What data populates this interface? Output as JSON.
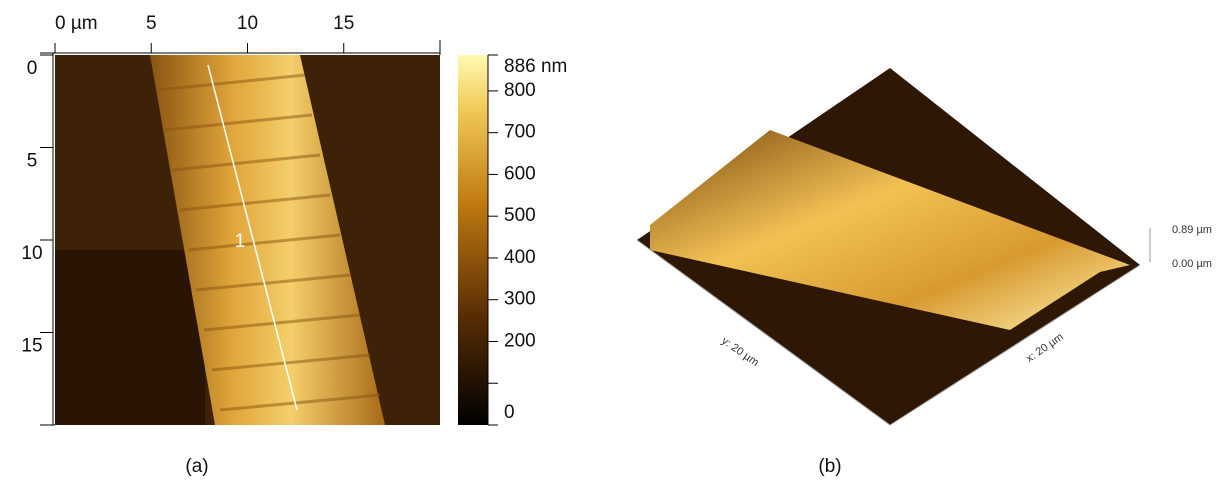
{
  "panel_a": {
    "caption": "(a)",
    "x_axis": {
      "lim": [
        0,
        20
      ],
      "ticks": [
        {
          "value": 0,
          "label": "0 µm"
        },
        5,
        10,
        15
      ]
    },
    "y_axis": {
      "lim": [
        0,
        20
      ],
      "ticks": [
        0,
        5,
        10,
        15
      ]
    },
    "profile_label": "1",
    "colorbar": {
      "lim": [
        0,
        886
      ],
      "ticks": [
        {
          "value": 886,
          "label": "886 nm"
        },
        800,
        700,
        600,
        500,
        400,
        300,
        200,
        0
      ],
      "minor_ticks": [
        100
      ]
    }
  },
  "panel_b": {
    "caption": "(b)",
    "z_ticks": [
      "0.89 µm",
      "0.00 µm"
    ],
    "x_label": "x: 20 µm",
    "y_label": "y: 20 µm"
  }
}
